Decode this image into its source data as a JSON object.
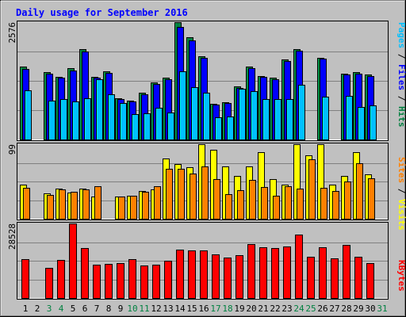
{
  "chart_data": {
    "type": "bar",
    "title": "Daily usage for September 2016",
    "categories": [
      "1",
      "2",
      "3",
      "4",
      "5",
      "6",
      "7",
      "8",
      "9",
      "10",
      "11",
      "12",
      "13",
      "14",
      "15",
      "16",
      "17",
      "18",
      "19",
      "20",
      "21",
      "22",
      "23",
      "24",
      "25",
      "26",
      "27",
      "28",
      "29",
      "30",
      "31"
    ],
    "weekend_days": [
      "3",
      "4",
      "10",
      "11",
      "17",
      "18",
      "24",
      "25",
      "31"
    ],
    "panels": [
      {
        "name": "hits-files-pages",
        "ymax": 2576,
        "ymax_label": "2576",
        "right_label_parts": [
          {
            "text": "Pages",
            "color": "#00c0ff"
          },
          {
            "text": " / ",
            "color": "#000000"
          },
          {
            "text": "Files",
            "color": "#0000ff"
          },
          {
            "text": " / ",
            "color": "#000000"
          },
          {
            "text": "Hits",
            "color": "#008040"
          }
        ],
        "series": [
          {
            "name": "Hits",
            "color": "#008040",
            "values": [
              1600,
              0,
              1480,
              1380,
              1560,
              1980,
              1380,
              1500,
              900,
              850,
              1020,
              1250,
              1350,
              2576,
              2250,
              1820,
              780,
              820,
              1170,
              1600,
              1400,
              1360,
              1760,
              1980,
              0,
              1800,
              0,
              1450,
              1480,
              1430,
              0
            ]
          },
          {
            "name": "Files",
            "color": "#0000ff",
            "values": [
              1550,
              0,
              1450,
              1350,
              1520,
              1930,
              1350,
              1470,
              880,
              830,
              1000,
              1220,
              1320,
              2470,
              2180,
              1790,
              760,
              800,
              1130,
              1570,
              1370,
              1330,
              1720,
              1950,
              0,
              1780,
              0,
              1420,
              1450,
              1400,
              0
            ]
          },
          {
            "name": "Pages",
            "color": "#00c0ff",
            "values": [
              1080,
              0,
              860,
              890,
              830,
              910,
              1330,
              1000,
              800,
              560,
              580,
              690,
              600,
              1500,
              1150,
              1020,
              480,
              510,
              1120,
              1060,
              880,
              890,
              890,
              1200,
              0,
              940,
              0,
              960,
              720,
              740,
              0
            ]
          }
        ]
      },
      {
        "name": "visits-sites",
        "ymax": 99,
        "ymax_label": "99",
        "right_label_parts": [
          {
            "text": "Sites",
            "color": "#ff8000"
          },
          {
            "text": " / ",
            "color": "#000000"
          },
          {
            "text": "Visits",
            "color": "#ffff00"
          }
        ],
        "series": [
          {
            "name": "Visits",
            "color": "#ffff00",
            "values": [
              45,
              0,
              34,
              40,
              35,
              40,
              30,
              0,
              30,
              31,
              37,
              39,
              80,
              73,
              68,
              99,
              92,
              70,
              57,
              70,
              88,
              53,
              45,
              99,
              84,
              99,
              45,
              57,
              88,
              59,
              0
            ]
          },
          {
            "name": "Sites",
            "color": "#ff8000",
            "values": [
              41,
              0,
              32,
              39,
              36,
              39,
              43,
              0,
              30,
              31,
              36,
              43,
              66,
              66,
              60,
              70,
              53,
              33,
              38,
              52,
              42,
              31,
              43,
              40,
              79,
              41,
              37,
              49,
              74,
              54,
              0
            ]
          }
        ]
      },
      {
        "name": "kbytes",
        "ymax": 28528,
        "ymax_label": "28528",
        "right_label_parts": [
          {
            "text": "KBytes",
            "color": "#ff0000"
          }
        ],
        "series": [
          {
            "name": "KBytes",
            "color": "#ff0000",
            "values": [
              15000,
              0,
              11500,
              14500,
              28528,
              19000,
              12700,
              13000,
              13500,
              15000,
              12500,
              12800,
              14200,
              18500,
              18100,
              18300,
              16600,
              15500,
              16500,
              20600,
              19400,
              19200,
              19600,
              24300,
              15800,
              19500,
              15300,
              20300,
              15700,
              13500,
              0
            ]
          }
        ]
      }
    ]
  }
}
